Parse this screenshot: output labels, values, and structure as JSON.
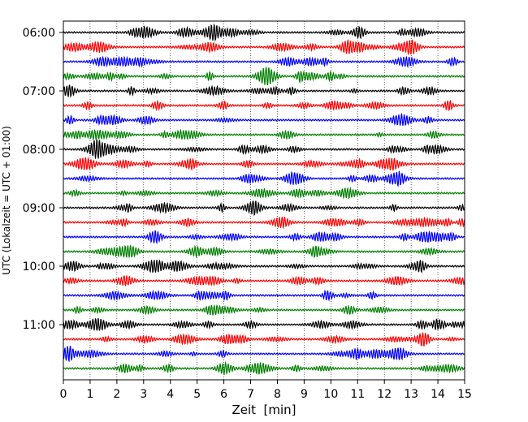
{
  "chart_data": {
    "type": "line",
    "title": "",
    "xlabel": "Zeit  [min]",
    "ylabel": "UTC (Lokalzeit = UTC + 01:00)",
    "xlim": [
      0,
      15
    ],
    "x_ticks": [
      "0",
      "1",
      "2",
      "3",
      "4",
      "5",
      "6",
      "7",
      "8",
      "9",
      "10",
      "11",
      "12",
      "13",
      "14",
      "15"
    ],
    "y_ticks": [
      "06:00",
      "07:00",
      "08:00",
      "09:00",
      "10:00",
      "11:00"
    ],
    "grid": "vertical dotted lines at each minute",
    "trace_interval_minutes": 15,
    "trace_start": "06:00",
    "trace_count": 24,
    "trace_colors": [
      "#000000",
      "#ff0000",
      "#0000ff",
      "#008000"
    ],
    "traces": [
      "06:00",
      "06:15",
      "06:30",
      "06:45",
      "07:00",
      "07:15",
      "07:30",
      "07:45",
      "08:00",
      "08:15",
      "08:30",
      "08:45",
      "09:00",
      "09:15",
      "09:30",
      "09:45",
      "10:00",
      "10:15",
      "10:30",
      "10:45",
      "11:00",
      "11:15",
      "11:30",
      "11:45"
    ]
  }
}
